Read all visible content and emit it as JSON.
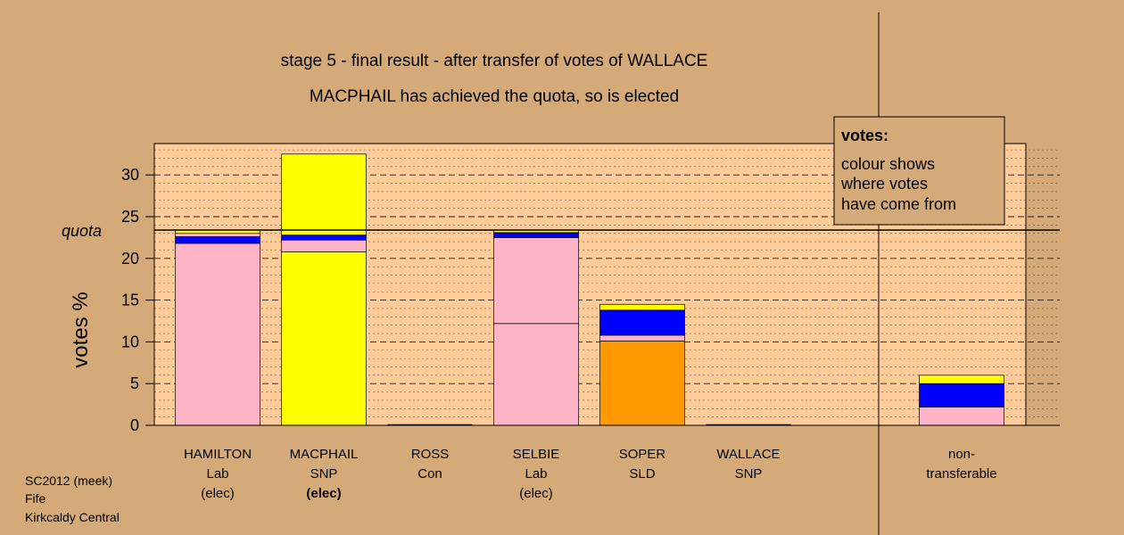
{
  "footer": {
    "line1": "SC2012 (meek)",
    "line2": "Fife",
    "line3": "Kirkcaldy Central"
  },
  "legend": {
    "title": "votes:",
    "lines": [
      "colour shows",
      "where votes",
      "have come from"
    ]
  },
  "colors": {
    "background": "#d4aa78",
    "plot_area": "#ffcc99",
    "Lab": "#ffb3c6",
    "SNP": "#ffff00",
    "Con": "#0000ff",
    "SLD": "#ff9900"
  },
  "chart_data": {
    "type": "bar",
    "stacked": true,
    "title": "stage 5 - final result - after transfer of votes of WALLACE",
    "subtitle": "MACPHAIL has achieved the quota, so is elected",
    "ylabel": "votes %",
    "ylim": [
      0,
      33
    ],
    "yticks": [
      0,
      5,
      10,
      15,
      20,
      25,
      30
    ],
    "quota": 23.4,
    "quota_label": "quota",
    "categories": [
      {
        "name": "HAMILTON",
        "party": "Lab",
        "status": "(elec)",
        "bold_status": false
      },
      {
        "name": "MACPHAIL",
        "party": "SNP",
        "status": "(elec)",
        "bold_status": true
      },
      {
        "name": "ROSS",
        "party": "Con",
        "status": "",
        "bold_status": false
      },
      {
        "name": "SELBIE",
        "party": "Lab",
        "status": "(elec)",
        "bold_status": false
      },
      {
        "name": "SOPER",
        "party": "SLD",
        "status": "",
        "bold_status": false
      },
      {
        "name": "WALLACE",
        "party": "SNP",
        "status": "",
        "bold_status": false
      }
    ],
    "segments": [
      [
        {
          "from": "Lab",
          "value": 21.8
        },
        {
          "from": "Con",
          "value": 0.8
        },
        {
          "from": "Lab",
          "value": 0.4
        },
        {
          "from": "SNP",
          "value": 0.4
        }
      ],
      [
        {
          "from": "SNP",
          "value": 20.8
        },
        {
          "from": "Lab",
          "value": 1.4
        },
        {
          "from": "Con",
          "value": 0.6
        },
        {
          "from": "SNP",
          "value": 9.7
        }
      ],
      [],
      [
        {
          "from": "Lab",
          "value": 12.2
        },
        {
          "from": "Lab",
          "value": 10.3
        },
        {
          "from": "Con",
          "value": 0.6
        },
        {
          "from": "SNP",
          "value": 0.3
        }
      ],
      [
        {
          "from": "SLD",
          "value": 10.1
        },
        {
          "from": "Lab",
          "value": 0.7
        },
        {
          "from": "Con",
          "value": 3.0
        },
        {
          "from": "SNP",
          "value": 0.7
        }
      ],
      []
    ],
    "nontransferable": {
      "label_line1": "non-",
      "label_line2": "transferable",
      "segments": [
        {
          "from": "Lab",
          "value": 2.2
        },
        {
          "from": "Con",
          "value": 2.8
        },
        {
          "from": "SNP",
          "value": 1.0
        }
      ]
    }
  }
}
